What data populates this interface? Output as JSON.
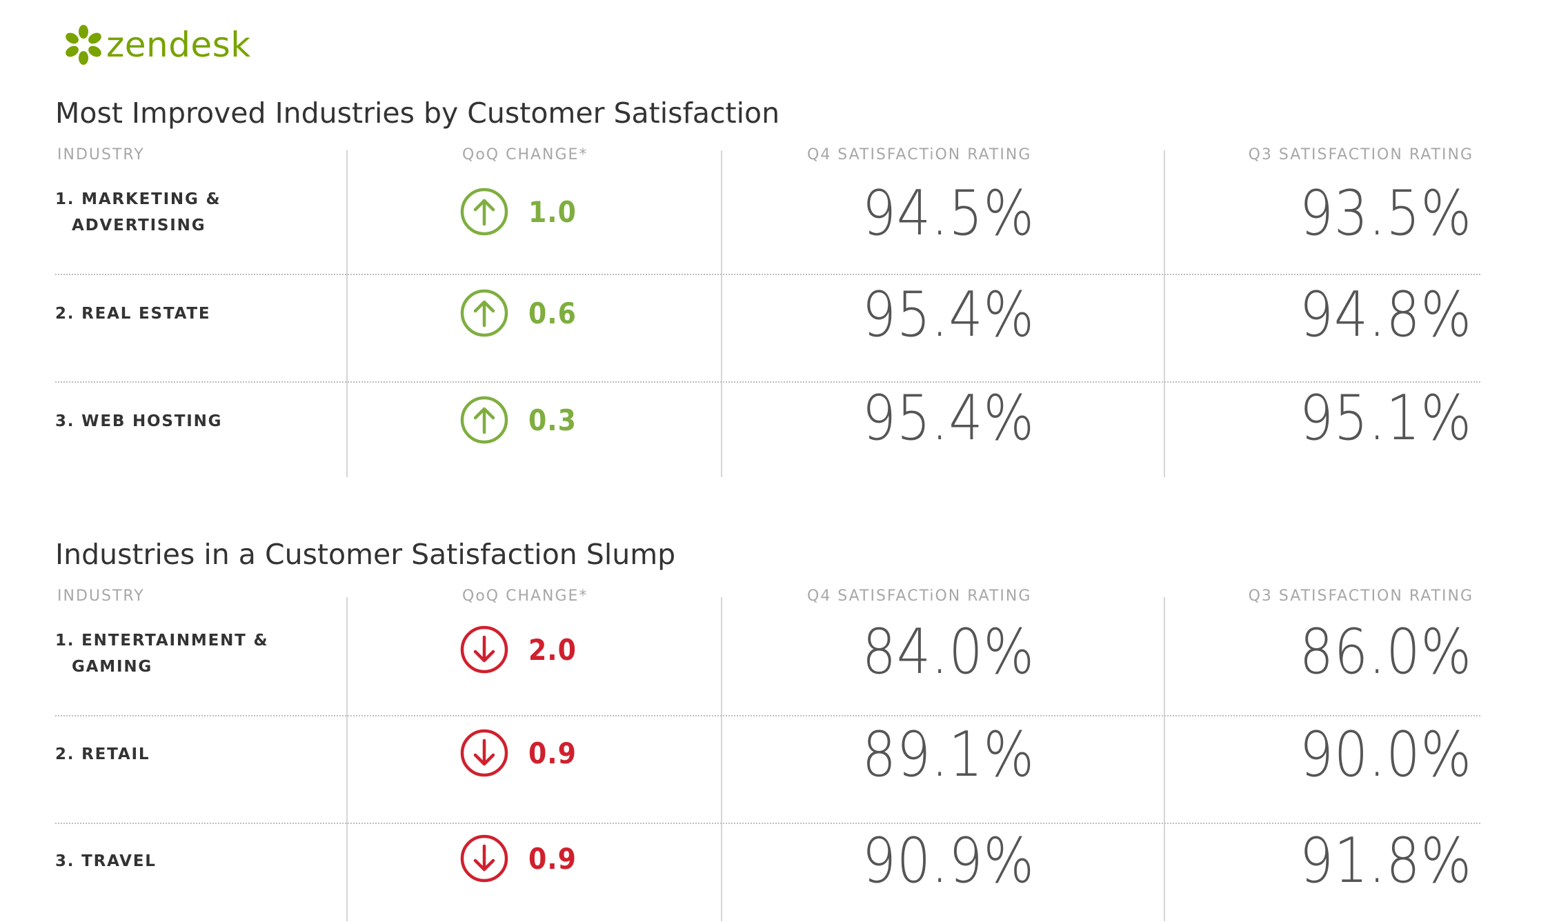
{
  "brand": {
    "name": "zendesk",
    "color": "#78a300"
  },
  "colors": {
    "up": "#7fae3f",
    "down": "#d0202e"
  },
  "chart_data": [
    {
      "type": "table",
      "title": "Most Improved Industries by Customer Satisfaction",
      "columns": [
        "INDUSTRY",
        "QoQ CHANGE*",
        "Q4 SATISFACTiON RATING",
        "Q3 SATISFACTION RATING"
      ],
      "rows": [
        {
          "industry": [
            "1. MARKETING &",
            "ADVERTISING"
          ],
          "direction": "up",
          "change": "1.0",
          "q4": "94.5%",
          "q3": "93.5%"
        },
        {
          "industry": [
            "2. REAL ESTATE"
          ],
          "direction": "up",
          "change": "0.6",
          "q4": "95.4%",
          "q3": "94.8%"
        },
        {
          "industry": [
            "3. WEB HOSTING"
          ],
          "direction": "up",
          "change": "0.3",
          "q4": "95.4%",
          "q3": "95.1%"
        }
      ]
    },
    {
      "type": "table",
      "title": "Industries in a Customer Satisfaction Slump",
      "columns": [
        "INDUSTRY",
        "QoQ CHANGE*",
        "Q4 SATISFACTiON RATING",
        "Q3 SATISFACTION RATING"
      ],
      "rows": [
        {
          "industry": [
            "1. ENTERTAINMENT &",
            "GAMING"
          ],
          "direction": "down",
          "change": "2.0",
          "q4": "84.0%",
          "q3": "86.0%"
        },
        {
          "industry": [
            "2. RETAIL"
          ],
          "direction": "down",
          "change": "0.9",
          "q4": "89.1%",
          "q3": "90.0%"
        },
        {
          "industry": [
            "3. TRAVEL"
          ],
          "direction": "down",
          "change": "0.9",
          "q4": "90.9%",
          "q3": "91.8%"
        }
      ]
    }
  ]
}
